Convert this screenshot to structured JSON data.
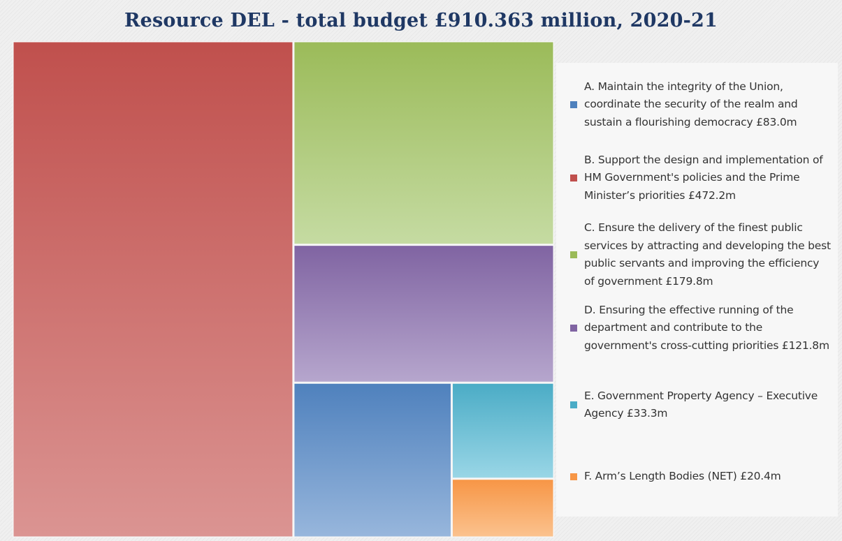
{
  "chart_data": {
    "type": "treemap",
    "title": "Resource DEL - total budget £910.363 million, 2020-21",
    "unit": "£m",
    "legend_position": "right",
    "categories": [
      "A. Maintain the integrity of the Union, coordinate the security of the realm and sustain a flourishing democracy £83.0m",
      "B. Support the design and implementation of HM Government's policies and the Prime Minister’s priorities £472.2m",
      "C. Ensure the delivery of the finest public services by attracting and developing the best public servants and improving the efficiency of government £179.8m",
      "D. Ensuring the effective running of the department and contribute to the government's cross-cutting priorities £121.8m",
      "E. Government Property Agency – Executive Agency £33.3m",
      "F. Arm’s Length Bodies (NET) £20.4m"
    ],
    "values": [
      83.0,
      472.2,
      179.8,
      121.8,
      33.3,
      20.4
    ],
    "colors": [
      "#4f81bd",
      "#c0504d",
      "#9bbb59",
      "#8064a2",
      "#4bacc6",
      "#f79646"
    ],
    "colors_light": [
      "#97b6dc",
      "#db9492",
      "#c5dba2",
      "#b6a6cd",
      "#99d6e6",
      "#fbc28e"
    ]
  }
}
